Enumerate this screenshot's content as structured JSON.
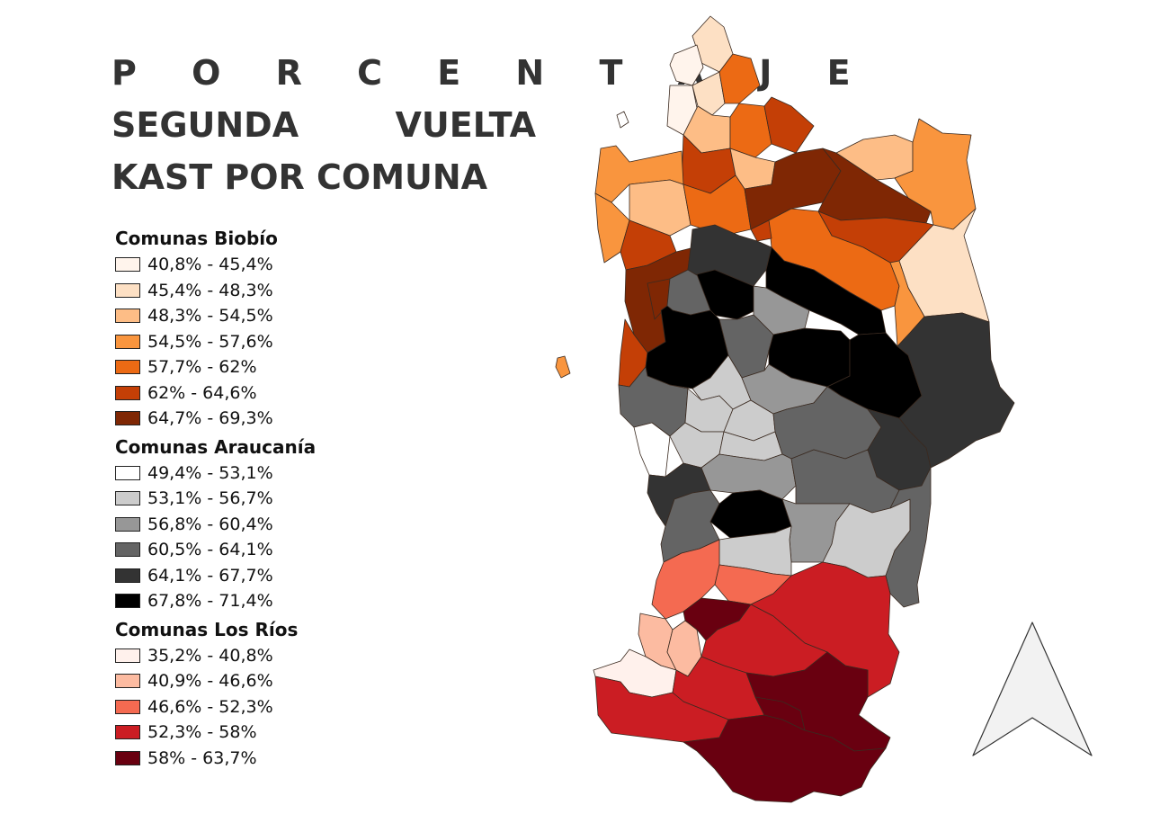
{
  "title": {
    "line1": "P O R C E N T A J E",
    "line2a": "SEGUNDA",
    "line2b": "VUELTA",
    "line3": "KAST POR COMUNA"
  },
  "legend": {
    "biobio": {
      "heading": "Comunas Biobío",
      "items": [
        {
          "label": "40,8% - 45,4%",
          "color": "#fff4ec"
        },
        {
          "label": "45,4% - 48,3%",
          "color": "#fde0c4"
        },
        {
          "label": "48,3% - 54,5%",
          "color": "#fdbd86"
        },
        {
          "label": "54,5% - 57,6%",
          "color": "#f9953e"
        },
        {
          "label": "57,7% - 62%",
          "color": "#ec6a14"
        },
        {
          "label": "62% - 64,6%",
          "color": "#c43f06"
        },
        {
          "label": "64,7% - 69,3%",
          "color": "#7f2704"
        }
      ]
    },
    "araucania": {
      "heading": "Comunas Araucanía",
      "items": [
        {
          "label": "49,4% - 53,1%",
          "color": "#ffffff"
        },
        {
          "label": "53,1% - 56,7%",
          "color": "#cccccc"
        },
        {
          "label": "56,8% - 60,4%",
          "color": "#979797"
        },
        {
          "label": "60,5% - 64,1%",
          "color": "#646464"
        },
        {
          "label": "64,1% - 67,7%",
          "color": "#333333"
        },
        {
          "label": "67,8% - 71,4%",
          "color": "#000000"
        }
      ]
    },
    "losrios": {
      "heading": "Comunas Los Ríos",
      "items": [
        {
          "label": "35,2% - 40,8%",
          "color": "#fff1ec"
        },
        {
          "label": "40,9% - 46,6%",
          "color": "#fcbba1"
        },
        {
          "label": "46,6% - 52,3%",
          "color": "#f46a51"
        },
        {
          "label": "52,3% - 58%",
          "color": "#cb1d23"
        },
        {
          "label": "58% - 63,7%",
          "color": "#690010"
        }
      ]
    }
  },
  "north_arrow": "north-arrow-icon"
}
